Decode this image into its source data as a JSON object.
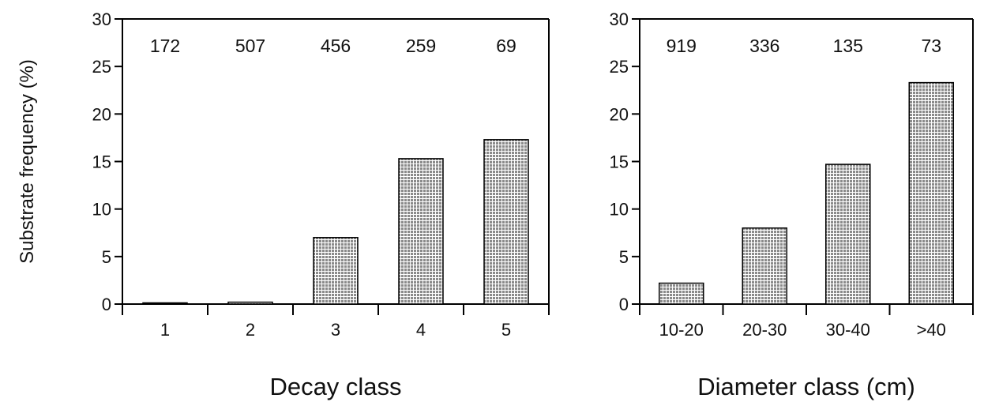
{
  "chart_data": [
    {
      "type": "bar",
      "categories": [
        "1",
        "2",
        "3",
        "4",
        "5"
      ],
      "values": [
        0,
        0.2,
        7,
        15.3,
        17.3
      ],
      "counts": [
        "172",
        "507",
        "456",
        "259",
        "69"
      ],
      "ylabel": "Substrate frequency (%)",
      "xlabel": "Decay class",
      "ylim": [
        0,
        30
      ],
      "yticks": [
        "0",
        "5",
        "10",
        "15",
        "20",
        "25",
        "30"
      ],
      "grid": false
    },
    {
      "type": "bar",
      "categories": [
        "10-20",
        "20-30",
        "30-40",
        ">40"
      ],
      "values": [
        2.2,
        8,
        14.7,
        23.3
      ],
      "counts": [
        "919",
        "336",
        "135",
        "73"
      ],
      "ylabel": "",
      "xlabel": "Diameter class (cm)",
      "ylim": [
        0,
        30
      ],
      "yticks": [
        "0",
        "5",
        "10",
        "15",
        "20",
        "25",
        "30"
      ],
      "grid": false
    }
  ],
  "colors": {
    "bar_fill": "#bcbcbc",
    "axis": "#000000"
  }
}
